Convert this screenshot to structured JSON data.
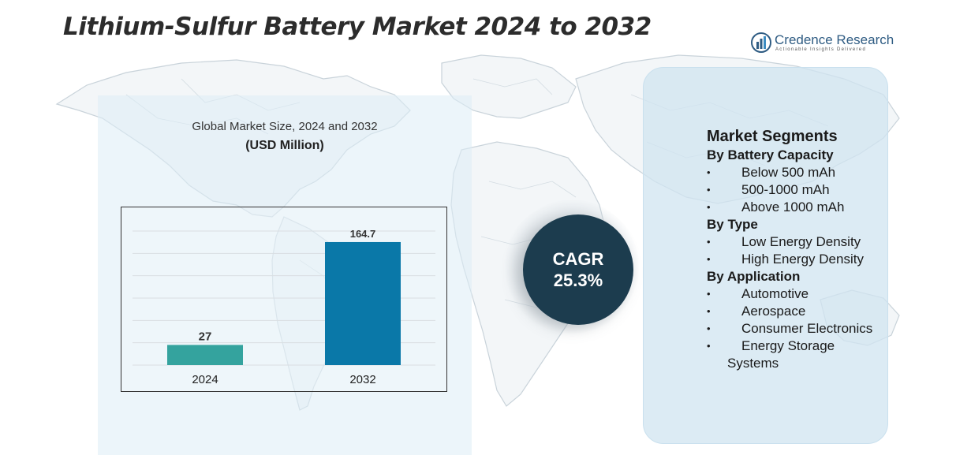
{
  "header": {
    "title": "Lithium-Sulfur Battery Market 2024 to 2032"
  },
  "logo": {
    "name": "Credence Research",
    "tagline": "Actionable Insights Delivered",
    "icon": "bar-chart-globe-icon",
    "color": "#2f5c83"
  },
  "chart_subtitle": "Global Market Size, 2024 and 2032",
  "chart_unit": "(USD Million)",
  "chart_data": {
    "type": "bar",
    "categories": [
      "2024",
      "2032"
    ],
    "values": [
      27,
      164.7
    ],
    "data_labels": [
      "27",
      "164.7"
    ],
    "colors": [
      "#34a39e",
      "#0a78a8"
    ],
    "title": "Global Market Size, 2024 and 2032",
    "ylabel": "(USD Million)",
    "xlabel": "",
    "ylim": [
      0,
      190
    ],
    "grid": true,
    "legend": "none"
  },
  "cagr": {
    "label": "CAGR",
    "value": "25.3%",
    "color": "#1c3c4e"
  },
  "segments": {
    "title": "Market Segments",
    "groups": [
      {
        "title": "By Battery Capacity",
        "items": [
          "Below 500 mAh",
          "500-1000 mAh",
          "Above 1000 mAh"
        ]
      },
      {
        "title": "By Type",
        "items": [
          "Low Energy Density",
          "High Energy Density"
        ]
      },
      {
        "title": "By Application",
        "items": [
          "Automotive",
          "Aerospace",
          "Consumer Electronics",
          "Energy Storage Systems"
        ]
      }
    ]
  }
}
